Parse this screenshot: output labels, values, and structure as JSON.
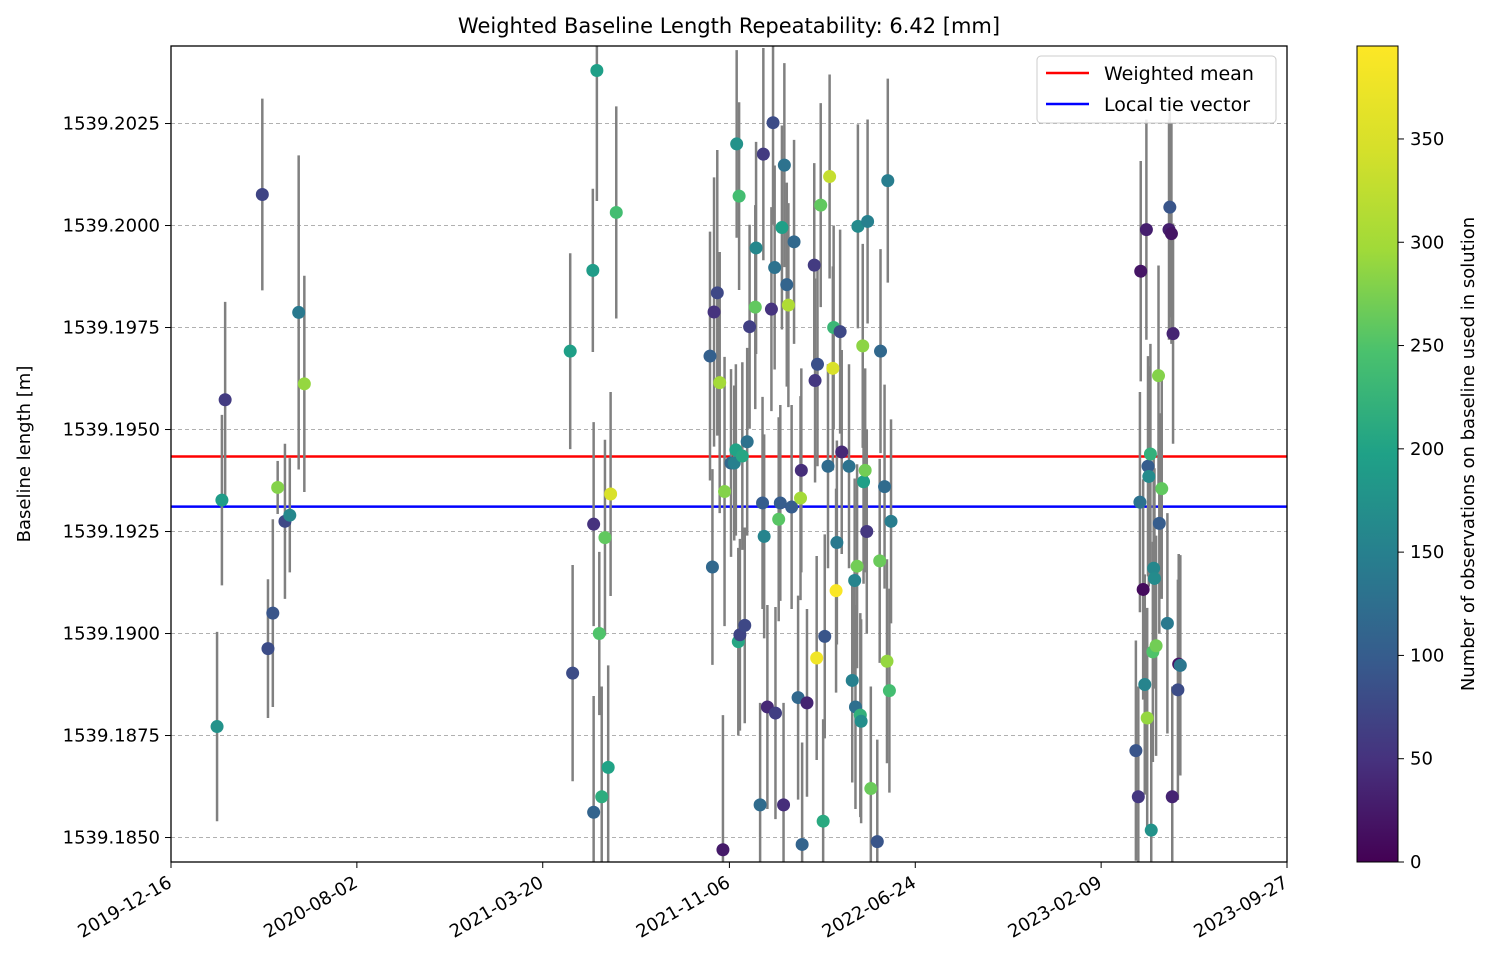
{
  "chart_data": {
    "type": "scatter",
    "title": "Weighted Baseline Length Repeatability: 6.42 [mm]",
    "xlabel": "",
    "ylabel": "Baseline length [m]",
    "colorbar_label": "Number of observations on baseline used in solution",
    "colormap": "viridis",
    "color_range": [
      0,
      395
    ],
    "colorbar_ticks": [
      0,
      50,
      100,
      150,
      200,
      250,
      300,
      350
    ],
    "x_ticks": [
      "2019-12-16",
      "2020-08-02",
      "2021-03-20",
      "2021-11-06",
      "2022-06-24",
      "2023-02-09",
      "2023-09-27"
    ],
    "xlim": [
      "2019-12-16",
      "2023-09-27"
    ],
    "y_ticks": [
      1539.185,
      1539.1875,
      1539.19,
      1539.1925,
      1539.195,
      1539.1975,
      1539.2,
      1539.2025
    ],
    "y_tick_labels": [
      "1539.1850",
      "1539.1875",
      "1539.1900",
      "1539.1925",
      "1539.1950",
      "1539.1975",
      "1539.2000",
      "1539.2025"
    ],
    "ylim": [
      1539.1844,
      1539.2044
    ],
    "grid": "y-dashed",
    "legend_position": "top-right",
    "hlines": [
      {
        "name": "Weighted mean",
        "y": 1539.19434,
        "color": "#ff0000"
      },
      {
        "name": "Local tie vector",
        "y": 1539.19311,
        "color": "#0000ff"
      }
    ],
    "errorbar_color": "#808080",
    "points": [
      {
        "date": "2020-02-11",
        "y": 1539.18772,
        "err": 0.00232,
        "n": 175
      },
      {
        "date": "2020-02-17",
        "y": 1539.19327,
        "err": 0.00209,
        "n": 190
      },
      {
        "date": "2020-02-21",
        "y": 1539.19573,
        "err": 0.0024,
        "n": 60
      },
      {
        "date": "2020-04-07",
        "y": 1539.20076,
        "err": 0.00235,
        "n": 70
      },
      {
        "date": "2020-04-14",
        "y": 1539.18963,
        "err": 0.0017,
        "n": 80
      },
      {
        "date": "2020-04-20",
        "y": 1539.1905,
        "err": 0.0023,
        "n": 90
      },
      {
        "date": "2020-04-26",
        "y": 1539.19358,
        "err": 0.00065,
        "n": 280
      },
      {
        "date": "2020-05-05",
        "y": 1539.19275,
        "err": 0.0019,
        "n": 75
      },
      {
        "date": "2020-05-11",
        "y": 1539.1929,
        "err": 0.0014,
        "n": 160
      },
      {
        "date": "2020-05-22",
        "y": 1539.19787,
        "err": 0.00385,
        "n": 140
      },
      {
        "date": "2020-05-29",
        "y": 1539.19612,
        "err": 0.00265,
        "n": 290
      },
      {
        "date": "2021-04-23",
        "y": 1539.19692,
        "err": 0.0024,
        "n": 195
      },
      {
        "date": "2021-04-26",
        "y": 1539.18903,
        "err": 0.00265,
        "n": 80
      },
      {
        "date": "2021-05-21",
        "y": 1539.1989,
        "err": 0.002,
        "n": 190
      },
      {
        "date": "2021-05-22",
        "y": 1539.19268,
        "err": 0.0025,
        "n": 50
      },
      {
        "date": "2021-05-22",
        "y": 1539.18562,
        "err": 0.00285,
        "n": 110
      },
      {
        "date": "2021-05-26",
        "y": 1539.2038,
        "err": 0.0032,
        "n": 195
      },
      {
        "date": "2021-05-29",
        "y": 1539.19,
        "err": 0.002,
        "n": 250
      },
      {
        "date": "2021-06-01",
        "y": 1539.186,
        "err": 0.0027,
        "n": 215
      },
      {
        "date": "2021-06-05",
        "y": 1539.19235,
        "err": 0.0024,
        "n": 260
      },
      {
        "date": "2021-06-09",
        "y": 1539.18672,
        "err": 0.0025,
        "n": 200
      },
      {
        "date": "2021-06-12",
        "y": 1539.19342,
        "err": 0.0025,
        "n": 350
      },
      {
        "date": "2021-06-19",
        "y": 1539.20032,
        "err": 0.0026,
        "n": 240
      },
      {
        "date": "2021-10-13",
        "y": 1539.1968,
        "err": 0.00305,
        "n": 105
      },
      {
        "date": "2021-10-16",
        "y": 1539.19163,
        "err": 0.0024,
        "n": 115
      },
      {
        "date": "2021-10-18",
        "y": 1539.19788,
        "err": 0.0033,
        "n": 50
      },
      {
        "date": "2021-10-22",
        "y": 1539.19835,
        "err": 0.0035,
        "n": 75
      },
      {
        "date": "2021-10-25",
        "y": 1539.19615,
        "err": 0.0032,
        "n": 300
      },
      {
        "date": "2021-10-29",
        "y": 1539.1847,
        "err": 0.0033,
        "n": 25
      },
      {
        "date": "2021-10-31",
        "y": 1539.19348,
        "err": 0.0033,
        "n": 280
      },
      {
        "date": "2021-11-08",
        "y": 1539.19418,
        "err": 0.0023,
        "n": 115
      },
      {
        "date": "2021-11-12",
        "y": 1539.19418,
        "err": 0.0019,
        "n": 150
      },
      {
        "date": "2021-11-14",
        "y": 1539.1945,
        "err": 0.0021,
        "n": 200
      },
      {
        "date": "2021-11-15",
        "y": 1539.202,
        "err": 0.0023,
        "n": 175
      },
      {
        "date": "2021-11-17",
        "y": 1539.1898,
        "err": 0.0023,
        "n": 205
      },
      {
        "date": "2021-11-18",
        "y": 1539.20072,
        "err": 0.0023,
        "n": 240
      },
      {
        "date": "2021-11-19",
        "y": 1539.18997,
        "err": 0.00235,
        "n": 70
      },
      {
        "date": "2021-11-22",
        "y": 1539.19435,
        "err": 0.0023,
        "n": 205
      },
      {
        "date": "2021-11-25",
        "y": 1539.1902,
        "err": 0.0024,
        "n": 75
      },
      {
        "date": "2021-11-28",
        "y": 1539.1947,
        "err": 0.0023,
        "n": 130
      },
      {
        "date": "2021-12-01",
        "y": 1539.19752,
        "err": 0.0025,
        "n": 65
      },
      {
        "date": "2021-12-08",
        "y": 1539.198,
        "err": 0.0025,
        "n": 260
      },
      {
        "date": "2021-12-09",
        "y": 1539.19945,
        "err": 0.0026,
        "n": 160
      },
      {
        "date": "2021-12-14",
        "y": 1539.1858,
        "err": 0.0025,
        "n": 120
      },
      {
        "date": "2021-12-17",
        "y": 1539.1932,
        "err": 0.0026,
        "n": 100
      },
      {
        "date": "2021-12-18",
        "y": 1539.20175,
        "err": 0.0026,
        "n": 60
      },
      {
        "date": "2021-12-19",
        "y": 1539.19238,
        "err": 0.0025,
        "n": 155
      },
      {
        "date": "2021-12-23",
        "y": 1539.1882,
        "err": 0.0025,
        "n": 40
      },
      {
        "date": "2021-12-28",
        "y": 1539.19795,
        "err": 0.0025,
        "n": 50
      },
      {
        "date": "2021-12-30",
        "y": 1539.20252,
        "err": 0.0025,
        "n": 80
      },
      {
        "date": "2022-01-01",
        "y": 1539.19897,
        "err": 0.0025,
        "n": 130
      },
      {
        "date": "2022-01-02",
        "y": 1539.18805,
        "err": 0.0026,
        "n": 65
      },
      {
        "date": "2022-01-06",
        "y": 1539.1928,
        "err": 0.0025,
        "n": 255
      },
      {
        "date": "2022-01-08",
        "y": 1539.1932,
        "err": 0.0024,
        "n": 100
      },
      {
        "date": "2022-01-10",
        "y": 1539.19995,
        "err": 0.0025,
        "n": 195
      },
      {
        "date": "2022-01-12",
        "y": 1539.1858,
        "err": 0.0025,
        "n": 45
      },
      {
        "date": "2022-01-13",
        "y": 1539.20148,
        "err": 0.0025,
        "n": 130
      },
      {
        "date": "2022-01-16",
        "y": 1539.19855,
        "err": 0.0025,
        "n": 110
      },
      {
        "date": "2022-01-18",
        "y": 1539.19805,
        "err": 0.0025,
        "n": 310
      },
      {
        "date": "2022-01-22",
        "y": 1539.1931,
        "err": 0.0025,
        "n": 100
      },
      {
        "date": "2022-01-25",
        "y": 1539.1996,
        "err": 0.0025,
        "n": 115
      },
      {
        "date": "2022-01-30",
        "y": 1539.18843,
        "err": 0.0025,
        "n": 115
      },
      {
        "date": "2022-02-02",
        "y": 1539.19332,
        "err": 0.0025,
        "n": 300
      },
      {
        "date": "2022-02-03",
        "y": 1539.194,
        "err": 0.0025,
        "n": 45
      },
      {
        "date": "2022-02-04",
        "y": 1539.18483,
        "err": 0.0025,
        "n": 110
      },
      {
        "date": "2022-02-10",
        "y": 1539.1883,
        "err": 0.0023,
        "n": 35
      },
      {
        "date": "2022-02-19",
        "y": 1539.19903,
        "err": 0.0025,
        "n": 60
      },
      {
        "date": "2022-02-20",
        "y": 1539.1962,
        "err": 0.0025,
        "n": 55
      },
      {
        "date": "2022-02-22",
        "y": 1539.1894,
        "err": 0.0025,
        "n": 380
      },
      {
        "date": "2022-02-23",
        "y": 1539.1966,
        "err": 0.0025,
        "n": 85
      },
      {
        "date": "2022-02-27",
        "y": 1539.2005,
        "err": 0.0025,
        "n": 260
      },
      {
        "date": "2022-03-02",
        "y": 1539.1854,
        "err": 0.0025,
        "n": 210
      },
      {
        "date": "2022-03-04",
        "y": 1539.18993,
        "err": 0.0025,
        "n": 90
      },
      {
        "date": "2022-03-08",
        "y": 1539.1941,
        "err": 0.0025,
        "n": 120
      },
      {
        "date": "2022-03-10",
        "y": 1539.2012,
        "err": 0.0025,
        "n": 330
      },
      {
        "date": "2022-03-14",
        "y": 1539.1965,
        "err": 0.0025,
        "n": 350
      },
      {
        "date": "2022-03-15",
        "y": 1539.1975,
        "err": 0.0025,
        "n": 230
      },
      {
        "date": "2022-03-18",
        "y": 1539.19105,
        "err": 0.0025,
        "n": 390
      },
      {
        "date": "2022-03-19",
        "y": 1539.19223,
        "err": 0.0025,
        "n": 140
      },
      {
        "date": "2022-03-23",
        "y": 1539.1974,
        "err": 0.0025,
        "n": 75
      },
      {
        "date": "2022-03-25",
        "y": 1539.19445,
        "err": 0.0025,
        "n": 40
      },
      {
        "date": "2022-04-03",
        "y": 1539.1941,
        "err": 0.0025,
        "n": 130
      },
      {
        "date": "2022-04-07",
        "y": 1539.18885,
        "err": 0.0025,
        "n": 150
      },
      {
        "date": "2022-04-10",
        "y": 1539.1913,
        "err": 0.0025,
        "n": 155
      },
      {
        "date": "2022-04-11",
        "y": 1539.1882,
        "err": 0.0025,
        "n": 125
      },
      {
        "date": "2022-04-13",
        "y": 1539.19165,
        "err": 0.0025,
        "n": 270
      },
      {
        "date": "2022-04-14",
        "y": 1539.19998,
        "err": 0.0025,
        "n": 165
      },
      {
        "date": "2022-04-17",
        "y": 1539.188,
        "err": 0.0025,
        "n": 220
      },
      {
        "date": "2022-04-18",
        "y": 1539.18785,
        "err": 0.0025,
        "n": 170
      },
      {
        "date": "2022-04-20",
        "y": 1539.19705,
        "err": 0.0025,
        "n": 285
      },
      {
        "date": "2022-04-21",
        "y": 1539.19372,
        "err": 0.0025,
        "n": 195
      },
      {
        "date": "2022-04-23",
        "y": 1539.194,
        "err": 0.0025,
        "n": 270
      },
      {
        "date": "2022-04-25",
        "y": 1539.1925,
        "err": 0.0025,
        "n": 55
      },
      {
        "date": "2022-04-26",
        "y": 1539.2001,
        "err": 0.0025,
        "n": 150
      },
      {
        "date": "2022-04-30",
        "y": 1539.1862,
        "err": 0.0025,
        "n": 265
      },
      {
        "date": "2022-05-08",
        "y": 1539.1849,
        "err": 0.0025,
        "n": 90
      },
      {
        "date": "2022-05-11",
        "y": 1539.19178,
        "err": 0.0025,
        "n": 265
      },
      {
        "date": "2022-05-12",
        "y": 1539.19692,
        "err": 0.0025,
        "n": 115
      },
      {
        "date": "2022-05-17",
        "y": 1539.1936,
        "err": 0.0025,
        "n": 120
      },
      {
        "date": "2022-05-20",
        "y": 1539.18932,
        "err": 0.0025,
        "n": 290
      },
      {
        "date": "2022-05-21",
        "y": 1539.2011,
        "err": 0.0025,
        "n": 145
      },
      {
        "date": "2022-05-23",
        "y": 1539.1886,
        "err": 0.0025,
        "n": 240
      },
      {
        "date": "2022-05-25",
        "y": 1539.19275,
        "err": 0.0025,
        "n": 145
      },
      {
        "date": "2023-03-24",
        "y": 1539.18713,
        "err": 0.0027,
        "n": 90
      },
      {
        "date": "2023-03-27",
        "y": 1539.186,
        "err": 0.0027,
        "n": 55
      },
      {
        "date": "2023-03-29",
        "y": 1539.19322,
        "err": 0.0027,
        "n": 130
      },
      {
        "date": "2023-03-30",
        "y": 1539.19888,
        "err": 0.0027,
        "n": 20
      },
      {
        "date": "2023-04-02",
        "y": 1539.19108,
        "err": 0.0027,
        "n": 10
      },
      {
        "date": "2023-04-04",
        "y": 1539.18875,
        "err": 0.0027,
        "n": 155
      },
      {
        "date": "2023-04-06",
        "y": 1539.1999,
        "err": 0.0027,
        "n": 30
      },
      {
        "date": "2023-04-07",
        "y": 1539.18793,
        "err": 0.0027,
        "n": 290
      },
      {
        "date": "2023-04-08",
        "y": 1539.1941,
        "err": 0.0027,
        "n": 100
      },
      {
        "date": "2023-04-09",
        "y": 1539.19385,
        "err": 0.0027,
        "n": 165
      },
      {
        "date": "2023-04-11",
        "y": 1539.1944,
        "err": 0.0027,
        "n": 220
      },
      {
        "date": "2023-04-12",
        "y": 1539.18518,
        "err": 0.0027,
        "n": 175
      },
      {
        "date": "2023-04-14",
        "y": 1539.18955,
        "err": 0.0027,
        "n": 250
      },
      {
        "date": "2023-04-15",
        "y": 1539.1916,
        "err": 0.0027,
        "n": 160
      },
      {
        "date": "2023-04-16",
        "y": 1539.19135,
        "err": 0.0027,
        "n": 165
      },
      {
        "date": "2023-04-18",
        "y": 1539.1897,
        "err": 0.0027,
        "n": 270
      },
      {
        "date": "2023-04-21",
        "y": 1539.19632,
        "err": 0.0027,
        "n": 280
      },
      {
        "date": "2023-04-22",
        "y": 1539.1927,
        "err": 0.0027,
        "n": 100
      },
      {
        "date": "2023-04-25",
        "y": 1539.19355,
        "err": 0.0027,
        "n": 260
      },
      {
        "date": "2023-05-02",
        "y": 1539.19025,
        "err": 0.0027,
        "n": 140
      },
      {
        "date": "2023-05-04",
        "y": 1539.1999,
        "err": 0.0027,
        "n": 30
      },
      {
        "date": "2023-05-05",
        "y": 1539.20045,
        "err": 0.0027,
        "n": 90
      },
      {
        "date": "2023-05-07",
        "y": 1539.1998,
        "err": 0.0027,
        "n": 20
      },
      {
        "date": "2023-05-08",
        "y": 1539.186,
        "err": 0.0027,
        "n": 35
      },
      {
        "date": "2023-05-09",
        "y": 1539.19735,
        "err": 0.0027,
        "n": 35
      },
      {
        "date": "2023-05-15",
        "y": 1539.18862,
        "err": 0.0027,
        "n": 80
      },
      {
        "date": "2023-05-16",
        "y": 1539.18925,
        "err": 0.0027,
        "n": 20
      },
      {
        "date": "2023-05-18",
        "y": 1539.18922,
        "err": 0.0027,
        "n": 135
      }
    ]
  }
}
